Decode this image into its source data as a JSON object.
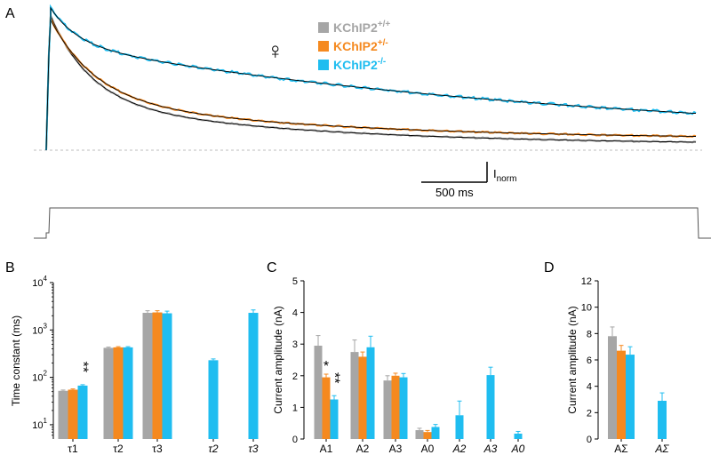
{
  "colors": {
    "wt": "#a6a6a6",
    "het": "#f5891f",
    "ko": "#1fbdf0",
    "fit": "#000000",
    "baseline": "#bdbdbd",
    "axis": "#000000"
  },
  "panel_a": {
    "letter": "A",
    "legend": [
      {
        "base": "KChIP2",
        "sup": "+/+",
        "color_key": "wt"
      },
      {
        "base": "KChIP2",
        "sup": "+/-",
        "color_key": "het"
      },
      {
        "base": "KChIP2",
        "sup": "-/-",
        "color_key": "ko"
      }
    ],
    "female_symbol": "♀",
    "scale_x": "500 ms",
    "scale_y_base": "I",
    "scale_y_sub": "norm"
  },
  "chart_data": [
    {
      "panel": "B",
      "type": "bar",
      "ylabel": "Time constant (ms)",
      "yscale": "log",
      "ylim": [
        5,
        10000
      ],
      "yticks": [
        {
          "base": "10",
          "exp": "1",
          "v": 10
        },
        {
          "base": "10",
          "exp": "2",
          "v": 100
        },
        {
          "base": "10",
          "exp": "3",
          "v": 1000
        },
        {
          "base": "10",
          "exp": "4",
          "v": 10000
        }
      ],
      "groups": [
        {
          "label": "τ1",
          "italic": false,
          "bars": [
            {
              "g": "wt",
              "v": 52,
              "e": 2
            },
            {
              "g": "het",
              "v": 55,
              "e": 2
            },
            {
              "g": "ko",
              "v": 67,
              "e": 3
            }
          ],
          "stars": [
            {
              "g": "ko",
              "t": "**"
            }
          ]
        },
        {
          "label": "τ2",
          "italic": false,
          "bars": [
            {
              "g": "wt",
              "v": 420,
              "e": 15
            },
            {
              "g": "het",
              "v": 430,
              "e": 15
            },
            {
              "g": "ko",
              "v": 430,
              "e": 15
            }
          ],
          "stars": []
        },
        {
          "label": "τ3",
          "italic": false,
          "bars": [
            {
              "g": "wt",
              "v": 2300,
              "e": 250
            },
            {
              "g": "het",
              "v": 2350,
              "e": 200
            },
            {
              "g": "ko",
              "v": 2250,
              "e": 250
            }
          ],
          "stars": []
        },
        {
          "label": "τ2",
          "italic": true,
          "bars": [
            {
              "g": "ko",
              "v": 230,
              "e": 15
            }
          ],
          "stars": []
        },
        {
          "label": "τ3",
          "italic": true,
          "bars": [
            {
              "g": "ko",
              "v": 2300,
              "e": 350
            }
          ],
          "stars": []
        }
      ]
    },
    {
      "panel": "C",
      "type": "bar",
      "ylabel": "Current amplitude (nA)",
      "yscale": "linear",
      "ylim": [
        0,
        5
      ],
      "yticks": [
        {
          "base": "0",
          "v": 0
        },
        {
          "base": "1",
          "v": 1
        },
        {
          "base": "2",
          "v": 2
        },
        {
          "base": "3",
          "v": 3
        },
        {
          "base": "4",
          "v": 4
        },
        {
          "base": "5",
          "v": 5
        }
      ],
      "groups": [
        {
          "label": "A1",
          "italic": false,
          "bars": [
            {
              "g": "wt",
              "v": 2.95,
              "e": 0.32
            },
            {
              "g": "het",
              "v": 1.95,
              "e": 0.1
            },
            {
              "g": "ko",
              "v": 1.25,
              "e": 0.12
            }
          ],
          "stars": [
            {
              "g": "het",
              "t": "*"
            },
            {
              "g": "ko",
              "t": "**"
            }
          ]
        },
        {
          "label": "A2",
          "italic": false,
          "bars": [
            {
              "g": "wt",
              "v": 2.75,
              "e": 0.38
            },
            {
              "g": "het",
              "v": 2.6,
              "e": 0.15
            },
            {
              "g": "ko",
              "v": 2.9,
              "e": 0.35
            }
          ],
          "stars": []
        },
        {
          "label": "A3",
          "italic": false,
          "bars": [
            {
              "g": "wt",
              "v": 1.85,
              "e": 0.15
            },
            {
              "g": "het",
              "v": 2.0,
              "e": 0.08
            },
            {
              "g": "ko",
              "v": 1.95,
              "e": 0.12
            }
          ],
          "stars": []
        },
        {
          "label": "A0",
          "italic": false,
          "bars": [
            {
              "g": "wt",
              "v": 0.28,
              "e": 0.06
            },
            {
              "g": "het",
              "v": 0.22,
              "e": 0.05
            },
            {
              "g": "ko",
              "v": 0.38,
              "e": 0.08
            }
          ],
          "stars": []
        },
        {
          "label": "A2",
          "italic": true,
          "bars": [
            {
              "g": "ko",
              "v": 0.75,
              "e": 0.45
            }
          ],
          "stars": []
        },
        {
          "label": "A3",
          "italic": true,
          "bars": [
            {
              "g": "ko",
              "v": 2.02,
              "e": 0.25
            }
          ],
          "stars": []
        },
        {
          "label": "A0",
          "italic": true,
          "bars": [
            {
              "g": "ko",
              "v": 0.17,
              "e": 0.07
            }
          ],
          "stars": []
        }
      ]
    },
    {
      "panel": "D",
      "type": "bar",
      "ylabel": "Current amplitude (nA)",
      "yscale": "linear",
      "ylim": [
        0,
        12
      ],
      "yticks": [
        {
          "base": "0",
          "v": 0
        },
        {
          "base": "2",
          "v": 2
        },
        {
          "base": "4",
          "v": 4
        },
        {
          "base": "6",
          "v": 6
        },
        {
          "base": "8",
          "v": 8
        },
        {
          "base": "10",
          "v": 10
        },
        {
          "base": "12",
          "v": 12
        }
      ],
      "groups": [
        {
          "label": "AΣ",
          "italic": false,
          "bars": [
            {
              "g": "wt",
              "v": 7.8,
              "e": 0.7
            },
            {
              "g": "het",
              "v": 6.7,
              "e": 0.4
            },
            {
              "g": "ko",
              "v": 6.4,
              "e": 0.6
            }
          ],
          "stars": []
        },
        {
          "label": "AΣ",
          "italic": true,
          "bars": [
            {
              "g": "ko",
              "v": 2.9,
              "e": 0.6
            }
          ],
          "stars": []
        }
      ]
    }
  ]
}
